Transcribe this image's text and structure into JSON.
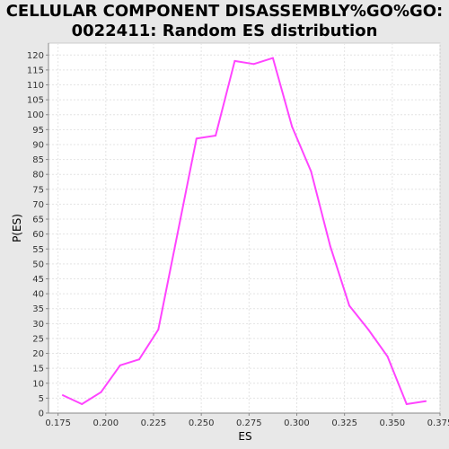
{
  "chart_data": {
    "type": "line",
    "title": [
      "CELLULAR COMPONENT DISASSEMBLY%GO%GO:",
      "0022411: Random ES distribution"
    ],
    "xlabel": "ES",
    "ylabel": "P(ES)",
    "xlim": [
      0.17,
      0.375
    ],
    "ylim": [
      0,
      124
    ],
    "x_ticks": [
      0.175,
      0.2,
      0.225,
      0.25,
      0.275,
      0.3,
      0.325,
      0.35,
      0.375
    ],
    "x_tick_labels": [
      "0.175",
      "0.200",
      "0.225",
      "0.250",
      "0.275",
      "0.300",
      "0.325",
      "0.350",
      "0.375"
    ],
    "y_ticks": [
      0,
      5,
      10,
      15,
      20,
      25,
      30,
      35,
      40,
      45,
      50,
      55,
      60,
      65,
      70,
      75,
      80,
      85,
      90,
      95,
      100,
      105,
      110,
      115,
      120
    ],
    "grid": true,
    "line_color": "#ff44ff",
    "series": [
      {
        "x": [
          0.1775,
          0.1875,
          0.1975,
          0.2075,
          0.2175,
          0.2275,
          0.2375,
          0.2475,
          0.2575,
          0.2675,
          0.2775,
          0.2875,
          0.2975,
          0.3075,
          0.3175,
          0.3275,
          0.3375,
          0.3475,
          0.3575,
          0.3675
        ],
        "y": [
          6,
          3,
          7,
          16,
          18,
          28,
          60,
          92,
          93,
          118,
          117,
          119,
          96,
          81,
          56,
          36,
          28,
          19,
          3,
          4
        ]
      }
    ]
  }
}
